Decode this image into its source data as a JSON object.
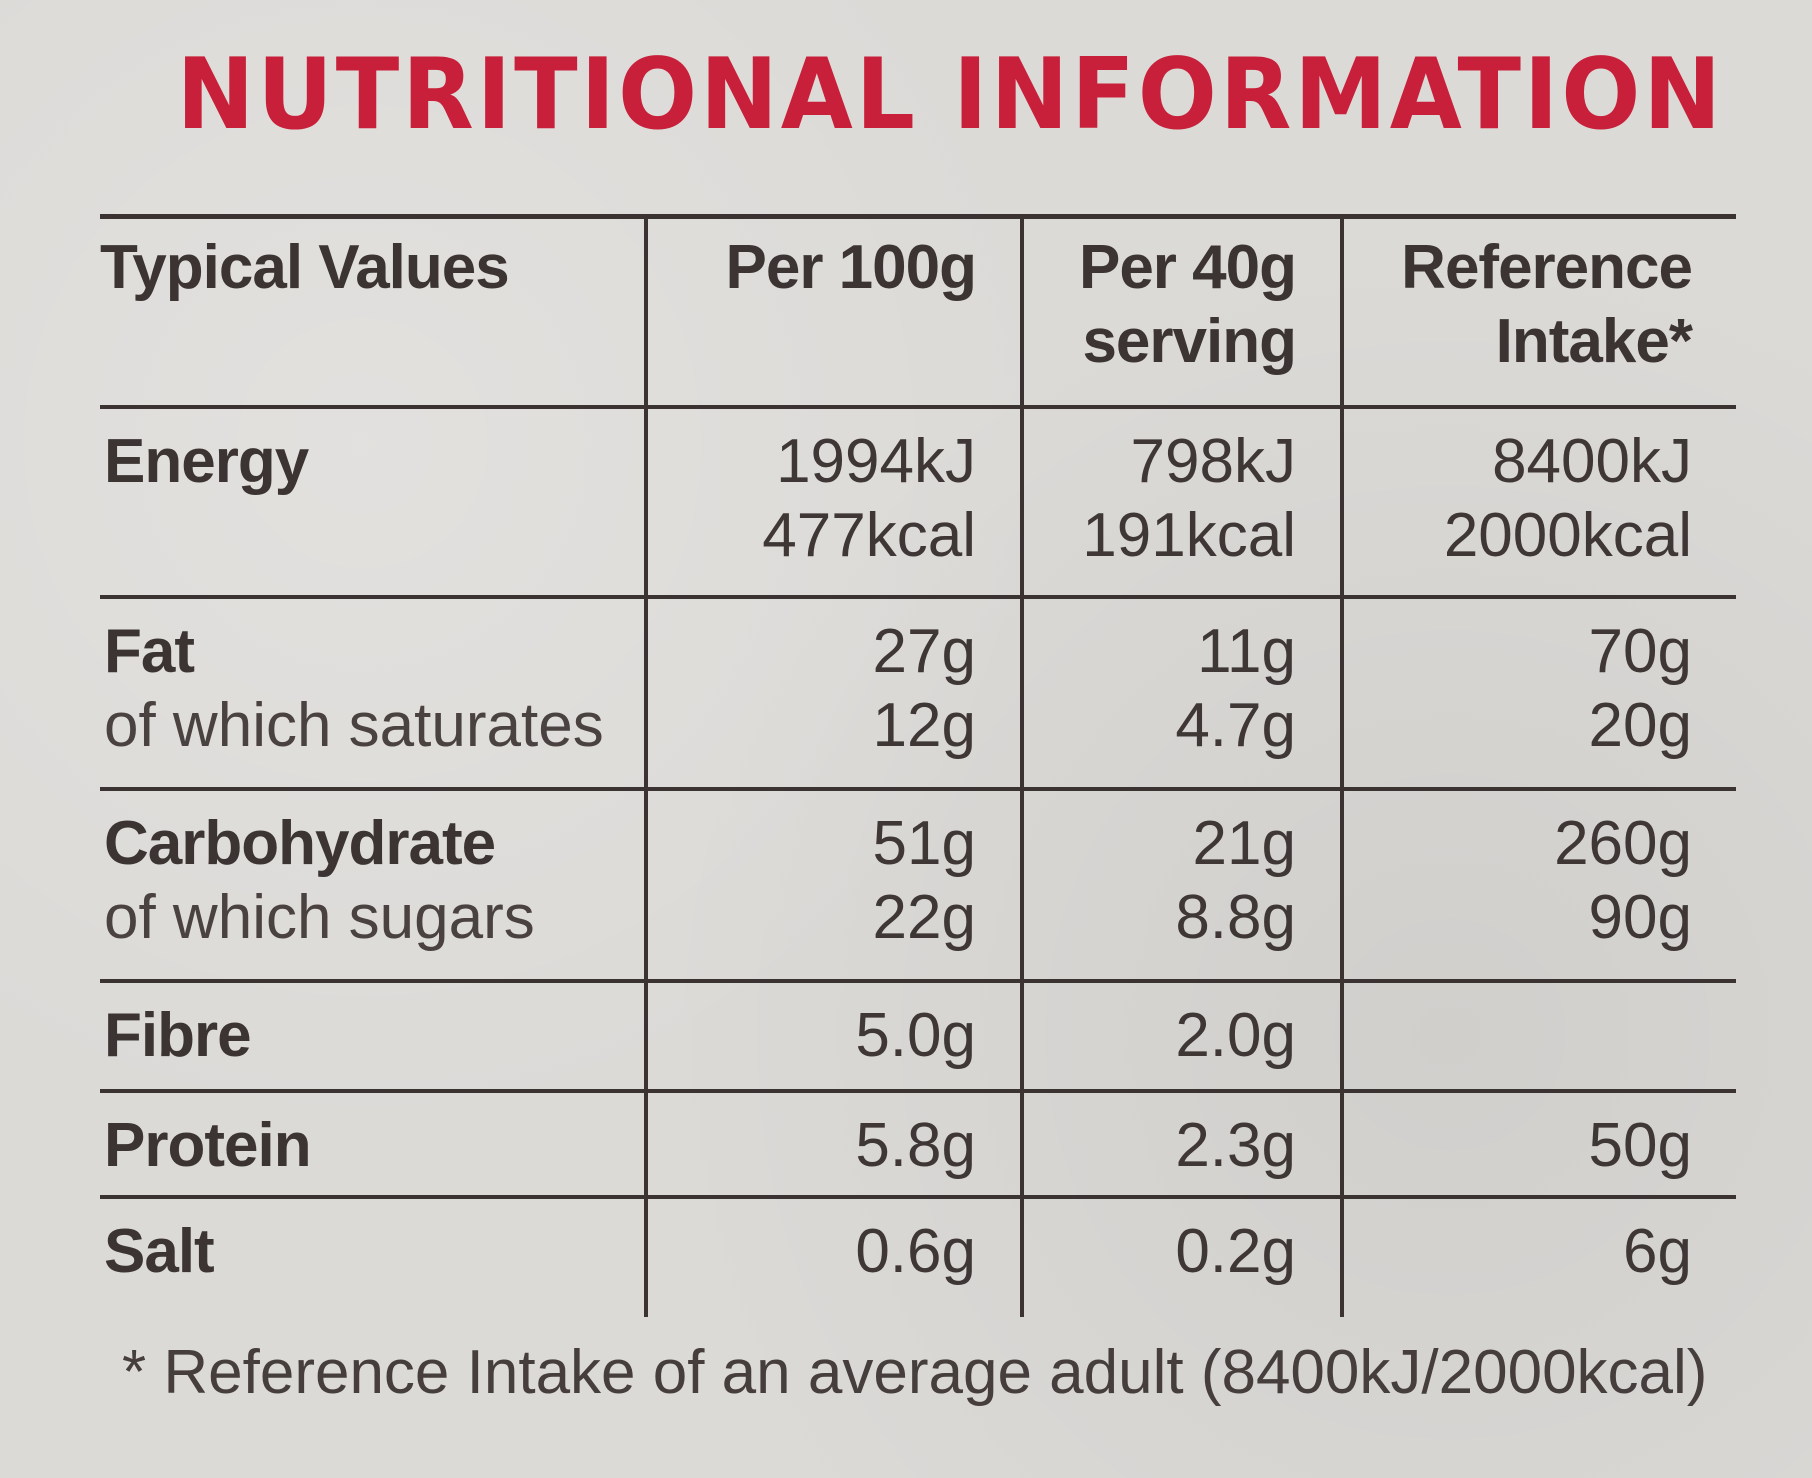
{
  "title": "NUTRITIONAL INFORMATION",
  "colors": {
    "title": "#c8203a",
    "text": "#3b3433",
    "rule": "#3a3332",
    "background": "#dcdad7"
  },
  "table": {
    "headers": [
      "Typical Values",
      "Per 100g",
      "Per 40g serving",
      "Reference Intake*"
    ],
    "header_lines": {
      "col3": [
        "Per 40g",
        "serving"
      ],
      "col4": [
        "Reference",
        "Intake*"
      ]
    },
    "rows": [
      {
        "nutrient": "Energy",
        "sub": "",
        "per100": [
          "1994kJ",
          "477kcal"
        ],
        "per40": [
          "798kJ",
          "191kcal"
        ],
        "ri": [
          "8400kJ",
          "2000kcal"
        ]
      },
      {
        "nutrient": "Fat",
        "sub": "of which saturates",
        "per100": [
          "27g",
          "12g"
        ],
        "per40": [
          "11g",
          "4.7g"
        ],
        "ri": [
          "70g",
          "20g"
        ]
      },
      {
        "nutrient": "Carbohydrate",
        "sub": "of which sugars",
        "per100": [
          "51g",
          "22g"
        ],
        "per40": [
          "21g",
          "8.8g"
        ],
        "ri": [
          "260g",
          "90g"
        ]
      },
      {
        "nutrient": "Fibre",
        "sub": "",
        "per100": [
          "5.0g"
        ],
        "per40": [
          "2.0g"
        ],
        "ri": [
          ""
        ]
      },
      {
        "nutrient": "Protein",
        "sub": "",
        "per100": [
          "5.8g"
        ],
        "per40": [
          "2.3g"
        ],
        "ri": [
          "50g"
        ]
      },
      {
        "nutrient": "Salt",
        "sub": "",
        "per100": [
          "0.6g"
        ],
        "per40": [
          "0.2g"
        ],
        "ri": [
          "6g"
        ]
      }
    ]
  },
  "footnote": "* Reference Intake of an average adult (8400kJ/2000kcal)"
}
